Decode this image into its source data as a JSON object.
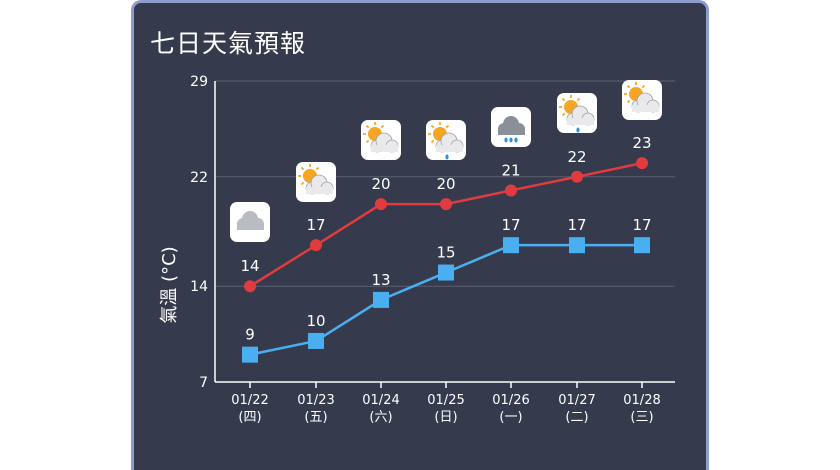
{
  "title": "七日天氣預報",
  "chart_data": {
    "type": "line",
    "title": "七日天氣預報",
    "ylabel": "氣溫 (°C)",
    "ylim": [
      7,
      29
    ],
    "yticks": [
      7,
      14,
      22,
      29
    ],
    "grid": true,
    "categories": [
      {
        "date": "01/22",
        "weekday": "(四)",
        "icon": "cloudy-icon"
      },
      {
        "date": "01/23",
        "weekday": "(五)",
        "icon": "partly-cloudy-icon"
      },
      {
        "date": "01/24",
        "weekday": "(六)",
        "icon": "partly-cloudy-icon"
      },
      {
        "date": "01/25",
        "weekday": "(日)",
        "icon": "partly-cloudy-rain-icon"
      },
      {
        "date": "01/26",
        "weekday": "(一)",
        "icon": "rain-cloud-icon"
      },
      {
        "date": "01/27",
        "weekday": "(二)",
        "icon": "partly-cloudy-rain-icon"
      },
      {
        "date": "01/28",
        "weekday": "(三)",
        "icon": "partly-cloudy-icon"
      }
    ],
    "series": [
      {
        "values": [
          14,
          17,
          20,
          20,
          21,
          22,
          23
        ],
        "color": "#e23b3f",
        "marker": "circle"
      },
      {
        "values": [
          9,
          10,
          13,
          15,
          17,
          17,
          17
        ],
        "color": "#4aaff0",
        "marker": "square"
      }
    ]
  },
  "colors": {
    "background": "#353b4c",
    "border": "#8e9ccd",
    "grid": "#5a6072",
    "high": "#e23b3f",
    "low": "#4aaff0"
  }
}
